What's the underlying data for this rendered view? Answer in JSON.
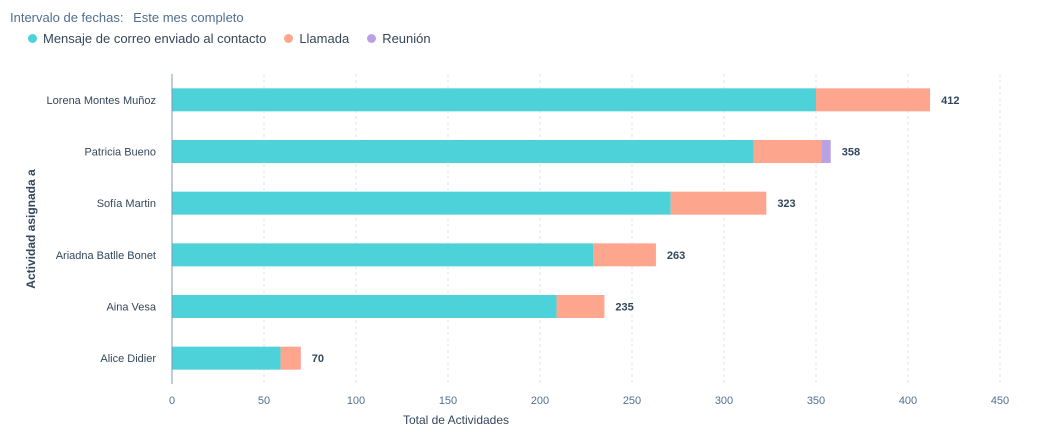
{
  "filter": {
    "label": "Intervalo de fechas:",
    "value": "Este mes completo"
  },
  "legend": [
    {
      "name": "Mensaje de correo enviado al contacto",
      "color": "#4dd2d9"
    },
    {
      "name": "Llamada",
      "color": "#fea58e"
    },
    {
      "name": "Reunión",
      "color": "#b9a2e4"
    }
  ],
  "chart_data": {
    "type": "bar",
    "orientation": "horizontal",
    "stacked": true,
    "xlabel": "Total de Actividades",
    "ylabel": "Actividad asignada a",
    "xlim": [
      0,
      450
    ],
    "xticks": [
      0,
      50,
      100,
      150,
      200,
      250,
      300,
      350,
      400,
      450
    ],
    "grid": "vertical-dashed",
    "legend_position": "top-left",
    "categories": [
      "Lorena Montes Muñoz",
      "Patricia Bueno",
      "Sofía Martin",
      "Ariadna Batlle Bonet",
      "Aina Vesa",
      "Alice Didier"
    ],
    "series": [
      {
        "name": "Mensaje de correo enviado al contacto",
        "color": "#4dd2d9",
        "values": [
          350,
          316,
          271,
          229,
          209,
          59
        ]
      },
      {
        "name": "Llamada",
        "color": "#fea58e",
        "values": [
          62,
          37,
          52,
          34,
          26,
          11
        ]
      },
      {
        "name": "Reunión",
        "color": "#b9a2e4",
        "values": [
          0,
          5,
          0,
          0,
          0,
          0
        ]
      }
    ],
    "totals": [
      412,
      358,
      323,
      263,
      235,
      70
    ]
  }
}
